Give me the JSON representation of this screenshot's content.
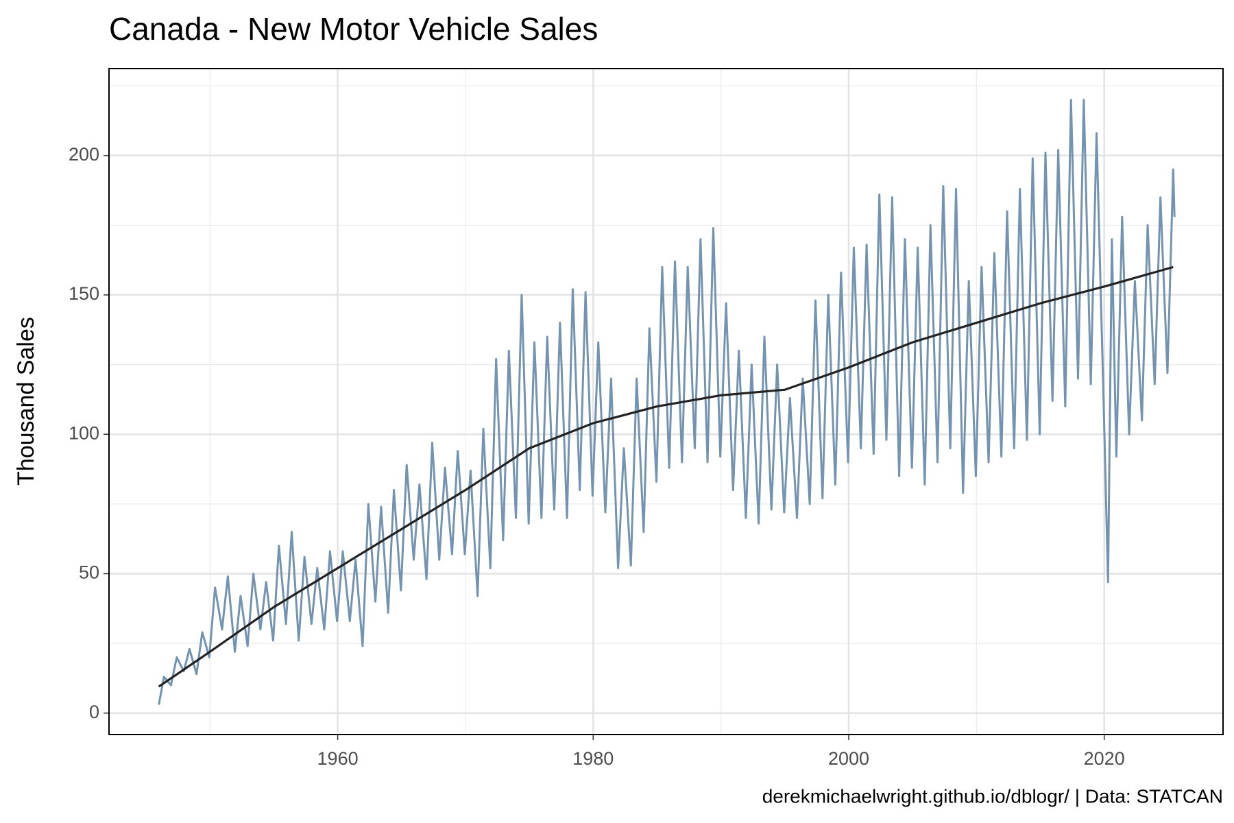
{
  "chart_data": {
    "type": "line",
    "title": "Canada - New Motor Vehicle Sales",
    "y_label": "Thousand Sales",
    "caption": "derekmichaelwright.github.io/dblogr/ | Data: STATCAN",
    "xlim": [
      1942.1,
      2029.3
    ],
    "xticks": [
      1960,
      1980,
      2000,
      2020
    ],
    "ylim": [
      -7.7,
      231.2
    ],
    "yticks": [
      0,
      50,
      100,
      150,
      200
    ],
    "grid": true,
    "series": [
      {
        "color": "#7393b0",
        "x": [
          1946.0,
          1946.4,
          1946.95,
          1947.4,
          1947.95,
          1948.4,
          1948.95,
          1949.4,
          1949.95,
          1950.4,
          1950.95,
          1951.4,
          1951.95,
          1952.4,
          1952.95,
          1953.4,
          1953.95,
          1954.4,
          1954.95,
          1955.4,
          1955.95,
          1956.4,
          1956.95,
          1957.4,
          1957.95,
          1958.4,
          1958.95,
          1959.4,
          1959.95,
          1960.4,
          1960.95,
          1961.4,
          1961.95,
          1962.4,
          1962.95,
          1963.4,
          1963.95,
          1964.4,
          1964.95,
          1965.4,
          1965.95,
          1966.4,
          1966.95,
          1967.4,
          1967.95,
          1968.4,
          1968.95,
          1969.4,
          1969.95,
          1970.4,
          1970.95,
          1971.4,
          1971.95,
          1972.4,
          1972.95,
          1973.4,
          1973.95,
          1974.4,
          1974.95,
          1975.4,
          1975.95,
          1976.4,
          1976.95,
          1977.4,
          1977.95,
          1978.4,
          1978.95,
          1979.4,
          1979.95,
          1980.4,
          1980.95,
          1981.4,
          1981.95,
          1982.4,
          1982.95,
          1983.4,
          1983.95,
          1984.4,
          1984.95,
          1985.4,
          1985.95,
          1986.4,
          1986.95,
          1987.4,
          1987.95,
          1988.4,
          1988.95,
          1989.4,
          1989.95,
          1990.4,
          1990.95,
          1991.4,
          1991.95,
          1992.4,
          1992.95,
          1993.4,
          1993.95,
          1994.4,
          1994.95,
          1995.4,
          1995.95,
          1996.4,
          1996.95,
          1997.4,
          1997.95,
          1998.4,
          1998.95,
          1999.4,
          1999.95,
          2000.4,
          2000.95,
          2001.4,
          2001.95,
          2002.4,
          2002.95,
          2003.4,
          2003.95,
          2004.4,
          2004.95,
          2005.4,
          2005.95,
          2006.4,
          2006.95,
          2007.4,
          2007.95,
          2008.4,
          2008.95,
          2009.4,
          2009.95,
          2010.4,
          2010.95,
          2011.4,
          2011.95,
          2012.4,
          2012.95,
          2013.4,
          2013.95,
          2014.4,
          2014.95,
          2015.4,
          2015.95,
          2016.4,
          2016.95,
          2017.4,
          2017.95,
          2018.4,
          2018.95,
          2019.4,
          2019.95,
          2020.3,
          2020.6,
          2020.95,
          2021.4,
          2021.95,
          2022.4,
          2022.95,
          2023.4,
          2023.95,
          2024.4,
          2024.95,
          2025.4,
          2025.5
        ],
        "values": [
          3,
          13,
          10,
          20,
          15,
          23,
          14,
          29,
          20,
          45,
          30,
          49,
          22,
          42,
          24,
          50,
          30,
          47,
          26,
          60,
          32,
          65,
          26,
          56,
          32,
          52,
          30,
          58,
          33,
          58,
          33,
          55,
          24,
          75,
          40,
          74,
          36,
          80,
          44,
          89,
          55,
          82,
          48,
          97,
          55,
          88,
          57,
          94,
          57,
          87,
          42,
          102,
          52,
          127,
          62,
          130,
          70,
          150,
          68,
          133,
          70,
          135,
          73,
          140,
          70,
          152,
          80,
          151,
          78,
          133,
          72,
          120,
          52,
          95,
          53,
          120,
          65,
          138,
          83,
          160,
          88,
          162,
          90,
          160,
          95,
          170,
          90,
          174,
          92,
          147,
          80,
          130,
          70,
          125,
          68,
          135,
          73,
          125,
          72,
          113,
          70,
          120,
          75,
          148,
          77,
          150,
          82,
          158,
          90,
          167,
          95,
          168,
          93,
          186,
          98,
          185,
          85,
          170,
          88,
          167,
          82,
          175,
          90,
          189,
          95,
          188,
          79,
          155,
          85,
          160,
          90,
          165,
          92,
          180,
          95,
          188,
          98,
          199,
          100,
          201,
          112,
          202,
          110,
          220,
          120,
          220,
          118,
          208,
          112,
          47,
          170,
          92,
          178,
          100,
          155,
          105,
          175,
          118,
          185,
          122,
          195,
          178
        ]
      },
      {
        "color": "#222222",
        "x": [
          1946.0,
          1950,
          1955,
          1960,
          1965,
          1970,
          1975,
          1980,
          1985,
          1990,
          1995,
          2000,
          2005,
          2010,
          2015,
          2020,
          2025.4
        ],
        "values": [
          9.5,
          22,
          38,
          52,
          66,
          80,
          95,
          104,
          110,
          114,
          116,
          124,
          133,
          140,
          147,
          153,
          160
        ]
      }
    ]
  }
}
